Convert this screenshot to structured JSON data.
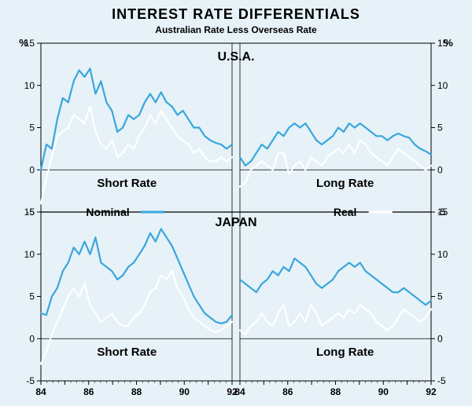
{
  "title": "INTEREST RATE DIFFERENTIALS",
  "subtitle": "Australian Rate Less Overseas Rate",
  "legend": {
    "nominal": "Nominal",
    "real": "Real"
  },
  "panel_labels": {
    "usa": "U.S.A.",
    "japan": "JAPAN",
    "short": "Short Rate",
    "long": "Long Rate"
  },
  "axis": {
    "y_unit": "%",
    "y_ticks": [
      -5,
      0,
      5,
      10,
      15
    ],
    "x_ticks": [
      84,
      85,
      86,
      87,
      88,
      89,
      90,
      91,
      92
    ],
    "x_labels": [
      "84",
      "86",
      "88",
      "90",
      "92"
    ],
    "ylim": [
      -5,
      15
    ]
  },
  "colors": {
    "background": "#e6f2f7",
    "nominal": "#3aa6dd",
    "real": "#ffffff",
    "axis": "#000000",
    "text": "#000000",
    "grid": "#000000"
  },
  "style": {
    "title_fontsize": 18,
    "subtitle_fontsize": 12,
    "label_fontsize": 14,
    "tick_fontsize": 12,
    "line_width": 2.2,
    "figure_width": 600,
    "figure_height": 517
  },
  "layout": {
    "rows": 2,
    "cols": 2,
    "row_countries": [
      "U.S.A.",
      "JAPAN"
    ],
    "col_rates": [
      "Short Rate",
      "Long Rate"
    ]
  },
  "series": {
    "usa_short": {
      "nominal": [
        0.0,
        3.0,
        2.5,
        6.0,
        8.5,
        8.0,
        10.5,
        11.8,
        11.0,
        12.0,
        9.0,
        10.5,
        8.0,
        7.0,
        4.5,
        5.0,
        6.5,
        6.0,
        6.5,
        8.0,
        9.0,
        8.0,
        9.2,
        8.0,
        7.5,
        6.5,
        7.0,
        6.0,
        5.0,
        5.0,
        4.0,
        3.5,
        3.2,
        3.0,
        2.5,
        3.0
      ],
      "real": [
        -4.0,
        -1.0,
        1.5,
        4.0,
        4.5,
        5.0,
        6.5,
        6.0,
        5.5,
        7.5,
        4.5,
        3.0,
        2.5,
        3.5,
        1.5,
        2.0,
        3.0,
        2.5,
        4.0,
        5.0,
        6.5,
        5.5,
        7.0,
        6.0,
        5.0,
        4.0,
        3.5,
        3.0,
        2.0,
        2.5,
        1.5,
        1.0,
        1.0,
        1.5,
        1.0,
        1.5
      ]
    },
    "usa_long": {
      "nominal": [
        1.5,
        0.5,
        1.0,
        2.0,
        3.0,
        2.5,
        3.5,
        4.5,
        4.0,
        5.0,
        5.5,
        5.0,
        5.5,
        4.5,
        3.5,
        3.0,
        3.5,
        4.0,
        5.0,
        4.5,
        5.5,
        5.0,
        5.5,
        5.0,
        4.5,
        4.0,
        4.0,
        3.5,
        4.0,
        4.3,
        4.0,
        3.8,
        3.0,
        2.5,
        2.2,
        1.8
      ],
      "real": [
        -2.0,
        -1.5,
        0.0,
        0.5,
        1.0,
        0.5,
        0.0,
        2.0,
        2.0,
        -0.5,
        0.5,
        1.0,
        0.0,
        1.5,
        1.0,
        0.5,
        1.5,
        2.0,
        2.5,
        2.0,
        3.0,
        2.0,
        3.5,
        3.0,
        2.0,
        1.5,
        1.0,
        0.5,
        1.5,
        2.5,
        2.0,
        1.5,
        1.0,
        0.5,
        0.0,
        0.5
      ]
    },
    "japan_short": {
      "nominal": [
        3.0,
        2.8,
        5.0,
        6.0,
        8.0,
        9.0,
        10.8,
        10.0,
        11.5,
        10.0,
        12.0,
        9.0,
        8.5,
        8.0,
        7.0,
        7.5,
        8.5,
        9.0,
        10.0,
        11.0,
        12.5,
        11.5,
        13.0,
        12.0,
        11.0,
        9.5,
        8.0,
        6.5,
        5.0,
        4.0,
        3.0,
        2.5,
        2.0,
        1.8,
        2.0,
        2.8
      ],
      "real": [
        -3.0,
        -1.5,
        0.5,
        2.0,
        3.5,
        5.0,
        6.0,
        5.0,
        6.5,
        4.0,
        3.0,
        2.0,
        2.5,
        3.0,
        2.0,
        1.5,
        1.5,
        2.5,
        3.0,
        4.0,
        5.5,
        6.0,
        7.5,
        7.0,
        8.0,
        6.0,
        5.0,
        3.5,
        2.5,
        2.0,
        1.5,
        1.0,
        0.8,
        1.0,
        1.5,
        2.0
      ]
    },
    "japan_long": {
      "nominal": [
        7.0,
        6.5,
        6.0,
        5.5,
        6.5,
        7.0,
        8.0,
        7.5,
        8.5,
        8.0,
        9.5,
        9.0,
        8.5,
        7.5,
        6.5,
        6.0,
        6.5,
        7.0,
        8.0,
        8.5,
        9.0,
        8.5,
        9.0,
        8.0,
        7.5,
        7.0,
        6.5,
        6.0,
        5.5,
        5.5,
        6.0,
        5.5,
        5.0,
        4.5,
        4.0,
        4.5
      ],
      "real": [
        1.0,
        0.5,
        1.5,
        2.0,
        3.0,
        2.0,
        1.5,
        3.0,
        4.0,
        1.5,
        2.0,
        3.0,
        2.0,
        4.0,
        3.0,
        1.5,
        2.0,
        2.5,
        3.0,
        2.5,
        3.5,
        3.0,
        4.0,
        3.5,
        3.0,
        2.0,
        1.5,
        1.0,
        1.5,
        2.5,
        3.5,
        3.0,
        2.5,
        2.0,
        2.5,
        3.5
      ]
    }
  }
}
